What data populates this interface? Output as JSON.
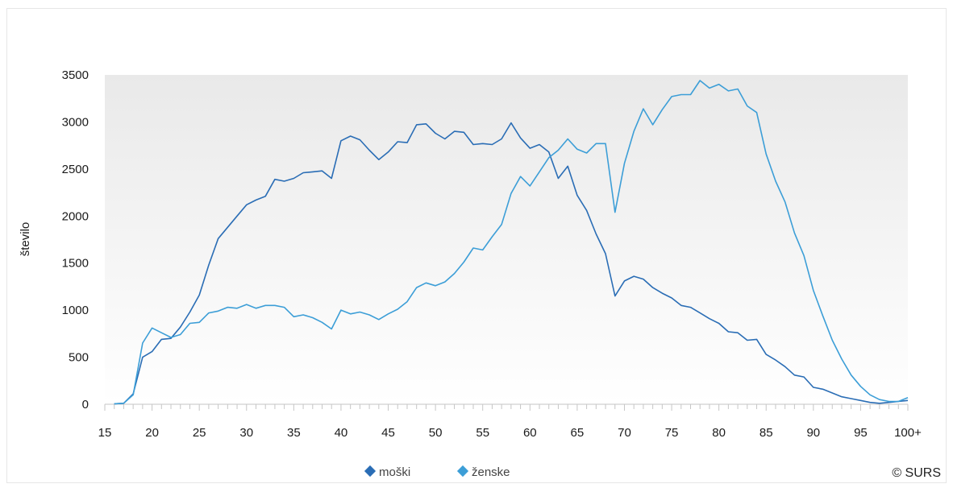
{
  "chart_data": {
    "type": "line",
    "xlabel": "",
    "ylabel": "število",
    "ylim": [
      0,
      3500
    ],
    "yticks": [
      "0",
      "500",
      "1000",
      "1500",
      "2000",
      "2500",
      "3000",
      "3500"
    ],
    "xticks": [
      "15",
      "20",
      "25",
      "30",
      "35",
      "40",
      "45",
      "50",
      "55",
      "60",
      "65",
      "70",
      "75",
      "80",
      "85",
      "90",
      "95",
      "100+"
    ],
    "x": [
      16,
      17,
      18,
      19,
      20,
      21,
      22,
      23,
      24,
      25,
      26,
      27,
      28,
      29,
      30,
      31,
      32,
      33,
      34,
      35,
      36,
      37,
      38,
      39,
      40,
      41,
      42,
      43,
      44,
      45,
      46,
      47,
      48,
      49,
      50,
      51,
      52,
      53,
      54,
      55,
      56,
      57,
      58,
      59,
      60,
      61,
      62,
      63,
      64,
      65,
      66,
      67,
      68,
      69,
      70,
      71,
      72,
      73,
      74,
      75,
      76,
      77,
      78,
      79,
      80,
      81,
      82,
      83,
      84,
      85,
      86,
      87,
      88,
      89,
      90,
      91,
      92,
      93,
      94,
      95,
      96,
      97,
      98,
      99,
      100
    ],
    "series": [
      {
        "name": "moški",
        "color": "#2a6db5",
        "values": [
          5,
          10,
          110,
          500,
          560,
          690,
          700,
          820,
          980,
          1160,
          1480,
          1760,
          1880,
          2000,
          2120,
          2170,
          2210,
          2390,
          2370,
          2400,
          2460,
          2470,
          2480,
          2400,
          2800,
          2850,
          2810,
          2700,
          2600,
          2680,
          2790,
          2780,
          2970,
          2980,
          2880,
          2820,
          2900,
          2890,
          2760,
          2770,
          2760,
          2820,
          2990,
          2830,
          2720,
          2760,
          2680,
          2400,
          2530,
          2220,
          2060,
          1810,
          1600,
          1150,
          1310,
          1360,
          1330,
          1240,
          1180,
          1130,
          1050,
          1030,
          970,
          910,
          860,
          770,
          760,
          680,
          690,
          530,
          470,
          400,
          310,
          290,
          180,
          160,
          120,
          80,
          60,
          40,
          20,
          10,
          20,
          30,
          40
        ]
      },
      {
        "name": "ženske",
        "color": "#3c9ed7",
        "values": [
          5,
          10,
          100,
          650,
          810,
          760,
          710,
          740,
          860,
          870,
          970,
          990,
          1030,
          1020,
          1060,
          1020,
          1050,
          1050,
          1030,
          930,
          950,
          920,
          870,
          800,
          1000,
          960,
          980,
          950,
          900,
          960,
          1010,
          1090,
          1240,
          1290,
          1260,
          1300,
          1390,
          1510,
          1660,
          1640,
          1780,
          1910,
          2240,
          2420,
          2320,
          2470,
          2620,
          2700,
          2820,
          2710,
          2670,
          2770,
          2770,
          2040,
          2560,
          2900,
          3140,
          2970,
          3130,
          3270,
          3290,
          3290,
          3440,
          3360,
          3400,
          3330,
          3350,
          3170,
          3100,
          2660,
          2370,
          2150,
          1820,
          1580,
          1210,
          940,
          680,
          480,
          310,
          190,
          100,
          50,
          30,
          30,
          70
        ]
      }
    ],
    "legend_position": "bottom-center",
    "grid": false
  },
  "credit": "© SURS"
}
